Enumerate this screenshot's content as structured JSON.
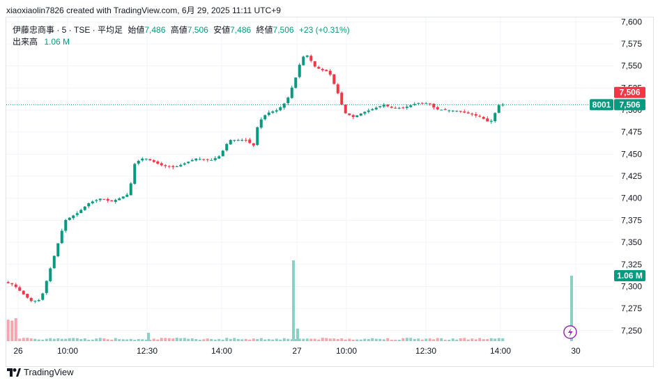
{
  "header": {
    "text": "xiaoxiaolin7826 created with TradingView.com, 6月 29, 2025 11:11 UTC+9"
  },
  "legend": {
    "symbol": "伊藤忠商事 · 5 · TSE · 平均足",
    "open_label": "始値",
    "open_value": "7,486",
    "high_label": "高値",
    "high_value": "7,506",
    "low_label": "安値",
    "low_value": "7,486",
    "close_label": "終値",
    "close_value": "7,506",
    "change": "+23 (+0.31%)",
    "volume_label": "出来高",
    "volume_value": "1.06 M"
  },
  "brand": {
    "name": "TradingView"
  },
  "icons": {
    "logo": "tradingview-logo-icon",
    "event": "lightning-icon"
  },
  "colors": {
    "up": "#089981",
    "down": "#f23645",
    "up_volume": "#8ccfc5",
    "down_volume": "#f5a6ad",
    "grid": "#f0f3fa"
  },
  "chart_data": {
    "type": "candlestick",
    "y_ticks": [
      "7,600",
      "7,575",
      "7,550",
      "7,525",
      "7,500",
      "7,475",
      "7,450",
      "7,425",
      "7,400",
      "7,375",
      "7,350",
      "7,325",
      "7,300",
      "7,275",
      "7,250"
    ],
    "x_ticks": [
      "26",
      "10:00",
      "12:30",
      "14:00",
      "27",
      "10:00",
      "12:30",
      "14:00",
      "30"
    ],
    "ylim": [
      7238,
      7605
    ],
    "price_tags": {
      "last_close": "7,506",
      "prev_tag": "7,506",
      "countdown": "8001",
      "volume_tag": "1.06 M"
    },
    "last_price": 7506,
    "segments": [
      {
        "day": "26",
        "from": 0,
        "to": 0.3,
        "points": [
          [
            0,
            7305
          ],
          [
            0.015,
            7302
          ],
          [
            0.03,
            7292
          ],
          [
            0.045,
            7283
          ],
          [
            0.06,
            7285
          ],
          [
            0.08,
            7330
          ],
          [
            0.1,
            7375
          ],
          [
            0.12,
            7383
          ],
          [
            0.14,
            7395
          ],
          [
            0.16,
            7400
          ],
          [
            0.175,
            7396
          ],
          [
            0.19,
            7400
          ],
          [
            0.205,
            7405
          ],
          [
            0.215,
            7440
          ],
          [
            0.23,
            7446
          ],
          [
            0.26,
            7437
          ],
          [
            0.28,
            7435
          ],
          [
            0.295,
            7439
          ],
          [
            0.315,
            7445
          ],
          [
            0.34,
            7443
          ],
          [
            0.355,
            7448
          ],
          [
            0.37,
            7466
          ],
          [
            0.4,
            7466
          ],
          [
            0.41,
            7458
          ]
        ]
      },
      {
        "day": "27",
        "from": 0.41,
        "to": 1.0,
        "points": [
          [
            0.415,
            7478
          ],
          [
            0.425,
            7492
          ],
          [
            0.435,
            7497
          ],
          [
            0.45,
            7500
          ],
          [
            0.465,
            7510
          ],
          [
            0.48,
            7537
          ],
          [
            0.49,
            7560
          ],
          [
            0.5,
            7562
          ],
          [
            0.51,
            7550
          ],
          [
            0.52,
            7546
          ],
          [
            0.535,
            7543
          ],
          [
            0.55,
            7518
          ],
          [
            0.56,
            7497
          ],
          [
            0.575,
            7492
          ],
          [
            0.59,
            7497
          ],
          [
            0.61,
            7502
          ],
          [
            0.625,
            7506
          ],
          [
            0.64,
            7502
          ],
          [
            0.66,
            7503
          ],
          [
            0.68,
            7508
          ],
          [
            0.7,
            7508
          ],
          [
            0.71,
            7501
          ],
          [
            0.725,
            7500
          ],
          [
            0.745,
            7499
          ],
          [
            0.765,
            7496
          ],
          [
            0.785,
            7492
          ],
          [
            0.8,
            7485
          ],
          [
            0.815,
            7506
          ]
        ]
      }
    ],
    "volume_spikes": [
      {
        "x_label": "27",
        "value": "big"
      },
      {
        "x_label": "30",
        "value": "1.06 M"
      }
    ]
  }
}
